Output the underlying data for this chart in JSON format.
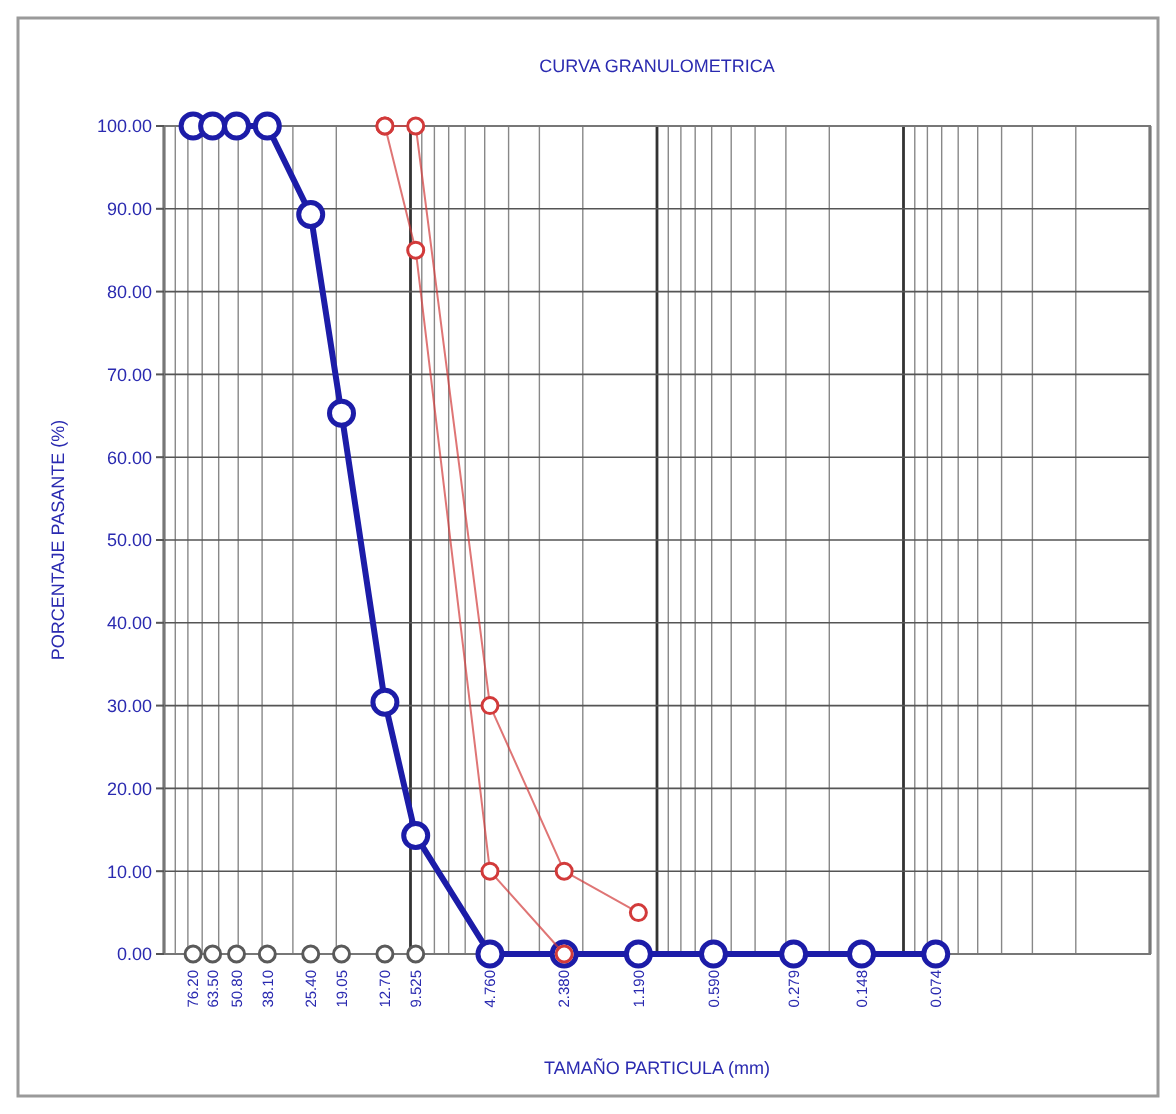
{
  "chart_data": {
    "type": "line",
    "title": "CURVA GRANULOMETRICA",
    "xlabel": "TAMAÑO PARTICULA (mm)",
    "ylabel": "PORCENTAJE PASANTE (%)",
    "x": [
      76.2,
      63.5,
      50.8,
      38.1,
      25.4,
      19.05,
      12.7,
      9.525,
      4.76,
      2.38,
      1.19,
      0.59,
      0.279,
      0.148,
      0.074
    ],
    "series": [
      {
        "color": "#1c1ca8",
        "values": [
          100,
          100,
          100,
          100,
          89.3,
          65.3,
          30.4,
          14.3,
          0,
          0,
          0,
          0,
          0,
          0,
          0
        ]
      },
      {
        "color": "#d23a3a",
        "values": [
          null,
          null,
          null,
          null,
          null,
          null,
          100,
          100,
          30,
          10,
          5,
          null,
          null,
          null,
          null
        ]
      },
      {
        "color": "#d23a3a",
        "values": [
          null,
          null,
          null,
          null,
          null,
          null,
          100,
          85,
          10,
          0,
          null,
          null,
          null,
          null,
          null
        ]
      },
      {
        "type": "scatter",
        "color": "#5a5a5a",
        "values": [
          0,
          0,
          0,
          0,
          0,
          0,
          0,
          0,
          null,
          null,
          null,
          null,
          null,
          null,
          null
        ]
      }
    ],
    "log": "x",
    "xlim": [
      100,
      0.01
    ],
    "xticks": [
      {
        "value": 76.2,
        "label": "76.20"
      },
      {
        "value": 63.5,
        "label": "63.50"
      },
      {
        "value": 50.8,
        "label": "50.80"
      },
      {
        "value": 38.1,
        "label": "38.10"
      },
      {
        "value": 25.4,
        "label": "25.40"
      },
      {
        "value": 19.05,
        "label": "19.05"
      },
      {
        "value": 12.7,
        "label": "12.70"
      },
      {
        "value": 9.525,
        "label": "9.525"
      },
      {
        "value": 4.76,
        "label": "4.760"
      },
      {
        "value": 2.38,
        "label": "2.380"
      },
      {
        "value": 1.19,
        "label": "1.190"
      },
      {
        "value": 0.59,
        "label": "0.590"
      },
      {
        "value": 0.279,
        "label": "0.279"
      },
      {
        "value": 0.148,
        "label": "0.148"
      },
      {
        "value": 0.074,
        "label": "0.074"
      }
    ],
    "ylim": [
      0,
      100
    ],
    "yticks": [
      {
        "value": 0,
        "label": "0.00"
      },
      {
        "value": 10,
        "label": "10.00"
      },
      {
        "value": 20,
        "label": "20.00"
      },
      {
        "value": 30,
        "label": "30.00"
      },
      {
        "value": 40,
        "label": "40.00"
      },
      {
        "value": 50,
        "label": "50.00"
      },
      {
        "value": 60,
        "label": "60.00"
      },
      {
        "value": 70,
        "label": "70.00"
      },
      {
        "value": 80,
        "label": "80.00"
      },
      {
        "value": 90,
        "label": "90.00"
      },
      {
        "value": 100,
        "label": "100.00"
      }
    ],
    "grid": true,
    "marker": "circle",
    "line_style": "solid"
  }
}
